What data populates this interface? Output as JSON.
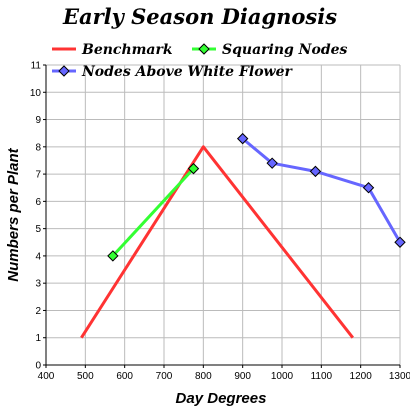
{
  "chart_data": {
    "type": "line",
    "title": "Early Season Diagnosis",
    "xlabel": "Day Degrees",
    "ylabel": "Numbers per Plant",
    "xlim": [
      400,
      1300
    ],
    "ylim": [
      0,
      11
    ],
    "xticks": [
      "400",
      "500",
      "600",
      "700",
      "800",
      "900",
      "1000",
      "1100",
      "1200",
      "1300"
    ],
    "yticks": [
      "0",
      "1",
      "2",
      "3",
      "4",
      "5",
      "6",
      "7",
      "8",
      "9",
      "10",
      "11"
    ],
    "grid": true,
    "legend_position": "top",
    "series": [
      {
        "name": "Benchmark",
        "color": "#ff3333",
        "marker": "none",
        "points": [
          [
            490,
            1
          ],
          [
            800,
            8
          ],
          [
            1180,
            1
          ]
        ]
      },
      {
        "name": "Squaring Nodes",
        "color": "#33ff33",
        "marker": "diamond",
        "points": [
          [
            570,
            4
          ],
          [
            775,
            7.2
          ]
        ]
      },
      {
        "name": "Nodes Above White Flower",
        "color": "#6666ff",
        "marker": "diamond",
        "points": [
          [
            900,
            8.3
          ],
          [
            975,
            7.4
          ],
          [
            1085,
            7.1
          ],
          [
            1220,
            6.5
          ],
          [
            1300,
            4.5
          ]
        ]
      }
    ]
  }
}
